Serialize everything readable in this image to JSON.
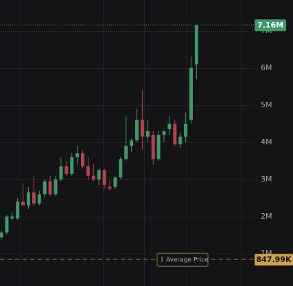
{
  "chart_data": {
    "type": "candlestick",
    "ylim": [
      0.13,
      7.83
    ],
    "yticks": [
      {
        "value": 1,
        "label": "1M"
      },
      {
        "value": 2,
        "label": "2M"
      },
      {
        "value": 3,
        "label": "3M"
      },
      {
        "value": 4,
        "label": "4M"
      },
      {
        "value": 5,
        "label": "5M"
      },
      {
        "value": 6,
        "label": "6M"
      },
      {
        "value": 7,
        "label": "7M"
      }
    ],
    "grid": true,
    "up_color": "#3d9a68",
    "down_color": "#b3414f",
    "open": [
      1.44,
      1.57,
      1.95,
      1.95,
      2.4,
      2.3,
      2.65,
      2.35,
      2.6,
      2.95,
      2.6,
      3.0,
      3.35,
      3.15,
      3.6,
      3.7,
      3.35,
      3.1,
      3.0,
      3.25,
      2.8,
      2.8,
      3.05,
      3.55,
      3.9,
      4.05,
      4.6,
      4.15,
      4.2,
      3.55,
      4.2,
      4.35,
      4.5,
      3.95,
      4.15,
      4.6,
      6.1
    ],
    "high": [
      1.62,
      2.05,
      2.1,
      2.5,
      2.9,
      2.8,
      3.1,
      2.7,
      3.0,
      3.1,
      3.1,
      3.6,
      3.5,
      3.7,
      3.9,
      3.8,
      3.6,
      3.4,
      3.3,
      3.3,
      2.95,
      3.1,
      3.6,
      4.7,
      4.1,
      4.9,
      5.4,
      4.6,
      4.3,
      4.3,
      4.3,
      4.7,
      4.6,
      4.25,
      4.8,
      6.3,
      7.16
    ],
    "low": [
      1.38,
      1.52,
      1.9,
      1.9,
      2.3,
      2.2,
      2.3,
      2.3,
      2.5,
      2.55,
      2.55,
      2.95,
      3.1,
      3.1,
      3.4,
      3.3,
      3.0,
      2.95,
      2.85,
      2.75,
      2.7,
      2.75,
      3.0,
      3.5,
      3.75,
      4.0,
      3.8,
      4.0,
      3.4,
      3.5,
      4.0,
      4.2,
      3.9,
      3.85,
      4.0,
      4.5,
      5.7
    ],
    "close": [
      1.57,
      2.0,
      2.0,
      2.4,
      2.3,
      2.65,
      2.35,
      2.6,
      2.95,
      2.6,
      3.0,
      3.35,
      3.15,
      3.6,
      3.7,
      3.35,
      3.1,
      3.0,
      3.25,
      2.85,
      2.75,
      3.05,
      3.55,
      3.9,
      4.05,
      4.6,
      4.15,
      4.3,
      3.55,
      4.2,
      4.3,
      4.5,
      3.95,
      4.15,
      4.5,
      6.0,
      7.16
    ],
    "last_price": {
      "value": 7.16,
      "label": "7.16M"
    },
    "average_price": {
      "name": "Average Price",
      "value": 0.84799,
      "label": "847.99K",
      "color": "#c9a24a"
    }
  }
}
